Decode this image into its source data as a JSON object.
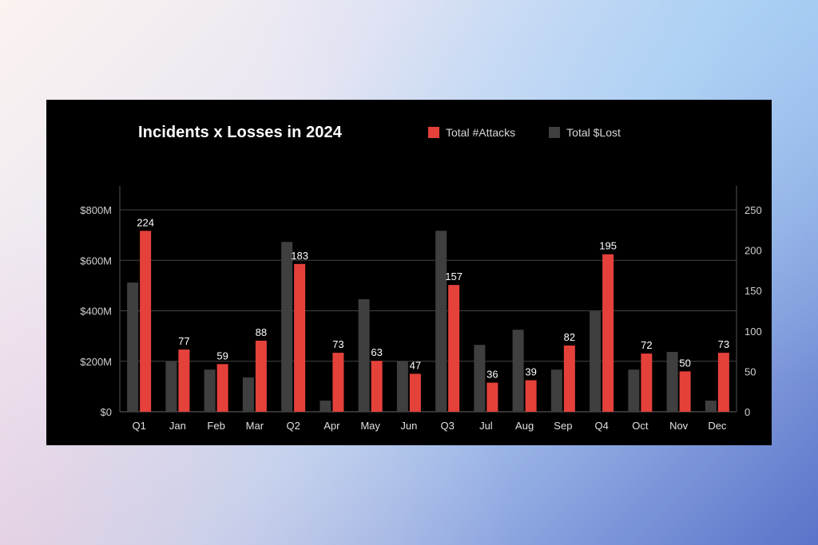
{
  "chart_data": {
    "type": "bar",
    "title": "Incidents x Losses in 2024",
    "categories": [
      "Q1",
      "Jan",
      "Feb",
      "Mar",
      "Q2",
      "Apr",
      "May",
      "Jun",
      "Q3",
      "Jul",
      "Aug",
      "Sep",
      "Q4",
      "Oct",
      "Nov",
      "Dec"
    ],
    "series": [
      {
        "name": "Total $Lost",
        "axis": "left",
        "unit": "$M",
        "color": "#3f3f3f",
        "values": [
          512,
          200,
          167,
          136,
          673,
          44,
          446,
          200,
          717,
          265,
          325,
          167,
          398,
          167,
          237,
          44
        ]
      },
      {
        "name": "Total #Attacks",
        "axis": "right",
        "color": "#e5413b",
        "values": [
          224,
          77,
          59,
          88,
          183,
          73,
          63,
          47,
          157,
          36,
          39,
          82,
          195,
          72,
          50,
          73
        ],
        "data_labels": true
      }
    ],
    "left_axis": {
      "ticks": [
        "$0",
        "$200M",
        "$400M",
        "$600M",
        "$800M"
      ],
      "range": [
        0,
        800
      ]
    },
    "right_axis": {
      "ticks": [
        "0",
        "50",
        "100",
        "150",
        "200",
        "250"
      ],
      "range": [
        0,
        250
      ]
    },
    "xlabel": "",
    "ylabel": "",
    "grid": true,
    "legend_position": "top"
  },
  "title": "Incidents x Losses in 2024",
  "legend": [
    {
      "label": "Total #Attacks",
      "color": "#e5413b"
    },
    {
      "label": "Total $Lost",
      "color": "#3f3f3f"
    }
  ]
}
